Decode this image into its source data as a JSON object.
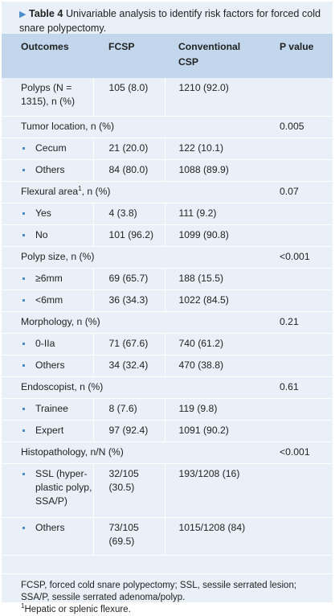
{
  "caption": {
    "arrow": "▶",
    "table_number": "Table 4",
    "title": "Univariable analysis to identify risk factors for forced cold snare polypectomy."
  },
  "columns": [
    "Outcomes",
    "FCSP",
    "Conventional CSP",
    "P value"
  ],
  "rows": [
    {
      "label": "Polyps (N = 1315), n (%)",
      "fcsp": "105 (8.0)",
      "csp": "1210 (92.0)",
      "p": ""
    },
    {
      "label": "Tumor location, n (%)",
      "p": "0.005"
    },
    {
      "label": "Cecum",
      "sub": true,
      "fcsp": "21 (20.0)",
      "csp": "122 (10.1)"
    },
    {
      "label": "Others",
      "sub": true,
      "fcsp": "84 (80.0)",
      "csp": "1088 (89.9)"
    },
    {
      "label": "Flexural area",
      "sup": "1",
      "label_suffix": ", n (%)",
      "p": "0.07"
    },
    {
      "label": "Yes",
      "sub": true,
      "fcsp": "4 (3.8)",
      "csp": "111 (9.2)"
    },
    {
      "label": "No",
      "sub": true,
      "fcsp": "101 (96.2)",
      "csp": "1099 (90.8)"
    },
    {
      "label": "Polyp size, n (%)",
      "p": "<0.001"
    },
    {
      "label": "≥6mm",
      "sub": true,
      "fcsp": "69 (65.7)",
      "csp": "188 (15.5)"
    },
    {
      "label": "<6mm",
      "sub": true,
      "fcsp": "36 (34.3)",
      "csp": "1022 (84.5)"
    },
    {
      "label": "Morphology, n (%)",
      "p": "0.21"
    },
    {
      "label": "0-IIa",
      "sub": true,
      "fcsp": "71 (67.6)",
      "csp": "740 (61.2)"
    },
    {
      "label": "Others",
      "sub": true,
      "fcsp": "34 (32.4)",
      "csp": "470 (38.8)"
    },
    {
      "label": "Endoscopist, n (%)",
      "p": "0.61"
    },
    {
      "label": "Trainee",
      "sub": true,
      "fcsp": "8 (7.6)",
      "csp": "119 (9.8)"
    },
    {
      "label": "Expert",
      "sub": true,
      "fcsp": "97 (92.4)",
      "csp": "1091 (90.2)"
    },
    {
      "label": "Histopathology, n/N (%)",
      "p": "<0.001"
    },
    {
      "label": "SSL (hyper-plastic polyp, SSA/P)",
      "sub": true,
      "fcsp": "32/105 (30.5)",
      "csp": "193/1208 (16)"
    },
    {
      "label": "Others",
      "sub": true,
      "fcsp": "73/105 (69.5)",
      "csp": "1015/1208 (84)"
    }
  ],
  "footnote": {
    "abbrev": "FCSP, forced cold snare polypectomy; SSL, sessile serrated lesion; SSA/P, sessile serrated adenoma/polyp.",
    "marker": "1",
    "note": "Hepatic or splenic flexure."
  }
}
